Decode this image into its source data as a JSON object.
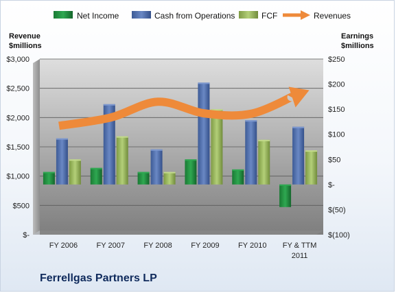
{
  "company_name": "Ferrellgas Partners LP",
  "colors": {
    "net_income": "#1f8a3c",
    "cash_from_operations": "#4a69a8",
    "fcf": "#9bbb59",
    "revenues": "#ee8a3a"
  },
  "chart_data": {
    "type": "bar",
    "categories": [
      "FY 2006",
      "FY 2007",
      "FY 2008",
      "FY 2009",
      "FY 2010",
      "FY & TTM 2011"
    ],
    "category_lines": [
      [
        "FY 2006"
      ],
      [
        "FY 2007"
      ],
      [
        "FY 2008"
      ],
      [
        "FY 2009"
      ],
      [
        "FY 2010"
      ],
      [
        "FY & TTM",
        "2011"
      ]
    ],
    "left_axis": {
      "title_lines": [
        "Revenue",
        "$millions"
      ],
      "range": [
        0,
        3000
      ],
      "ticks": [
        0,
        500,
        1000,
        1500,
        2000,
        2500,
        3000
      ],
      "tick_labels": [
        "$-",
        "$500",
        "$1,000",
        "$1,500",
        "$2,000",
        "$2,500",
        "$3,000"
      ]
    },
    "right_axis": {
      "title_lines": [
        "Earnings",
        "$millions"
      ],
      "range": [
        -100,
        250
      ],
      "ticks": [
        -100,
        -50,
        0,
        50,
        100,
        150,
        200,
        250
      ],
      "tick_labels": [
        "$(100)",
        "$(50)",
        "$-",
        "$50",
        "$100",
        "$150",
        "$200",
        "$250"
      ]
    },
    "series": [
      {
        "name": "Net Income",
        "axis": "right",
        "kind": "bar",
        "values": [
          25,
          33,
          25,
          50,
          30,
          -45
        ]
      },
      {
        "name": "Cash from Operations",
        "axis": "right",
        "kind": "bar",
        "values": [
          92,
          160,
          70,
          203,
          128,
          115
        ]
      },
      {
        "name": "FCF",
        "axis": "right",
        "kind": "bar",
        "values": [
          50,
          96,
          25,
          150,
          89,
          68
        ]
      },
      {
        "name": "Revenues",
        "axis": "left",
        "kind": "line",
        "values": [
          1860,
          2000,
          2270,
          2070,
          2070,
          2420
        ]
      }
    ],
    "legend_position": "top",
    "grid": true
  }
}
